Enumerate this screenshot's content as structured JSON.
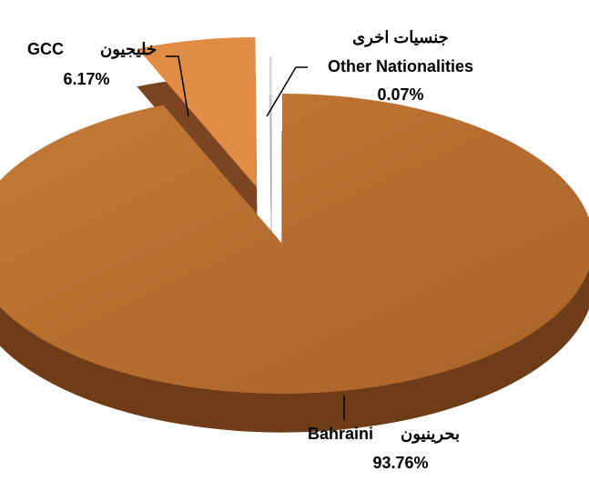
{
  "chart_data": {
    "type": "pie",
    "categories": [
      "Bahraini",
      "GCC",
      "Other Nationalities"
    ],
    "categories_ar": [
      "بحرينيون",
      "خليجيون",
      "جنسيات اخرى"
    ],
    "values": [
      93.76,
      6.17,
      0.07
    ],
    "value_labels": [
      "93.76%",
      "6.17%",
      "0.07%"
    ],
    "colors": [
      "#b86f30",
      "#e08c45",
      "#ffffff"
    ],
    "side_colors": [
      "#6e3d18",
      "#7a4520",
      "#bbbbbb"
    ]
  }
}
